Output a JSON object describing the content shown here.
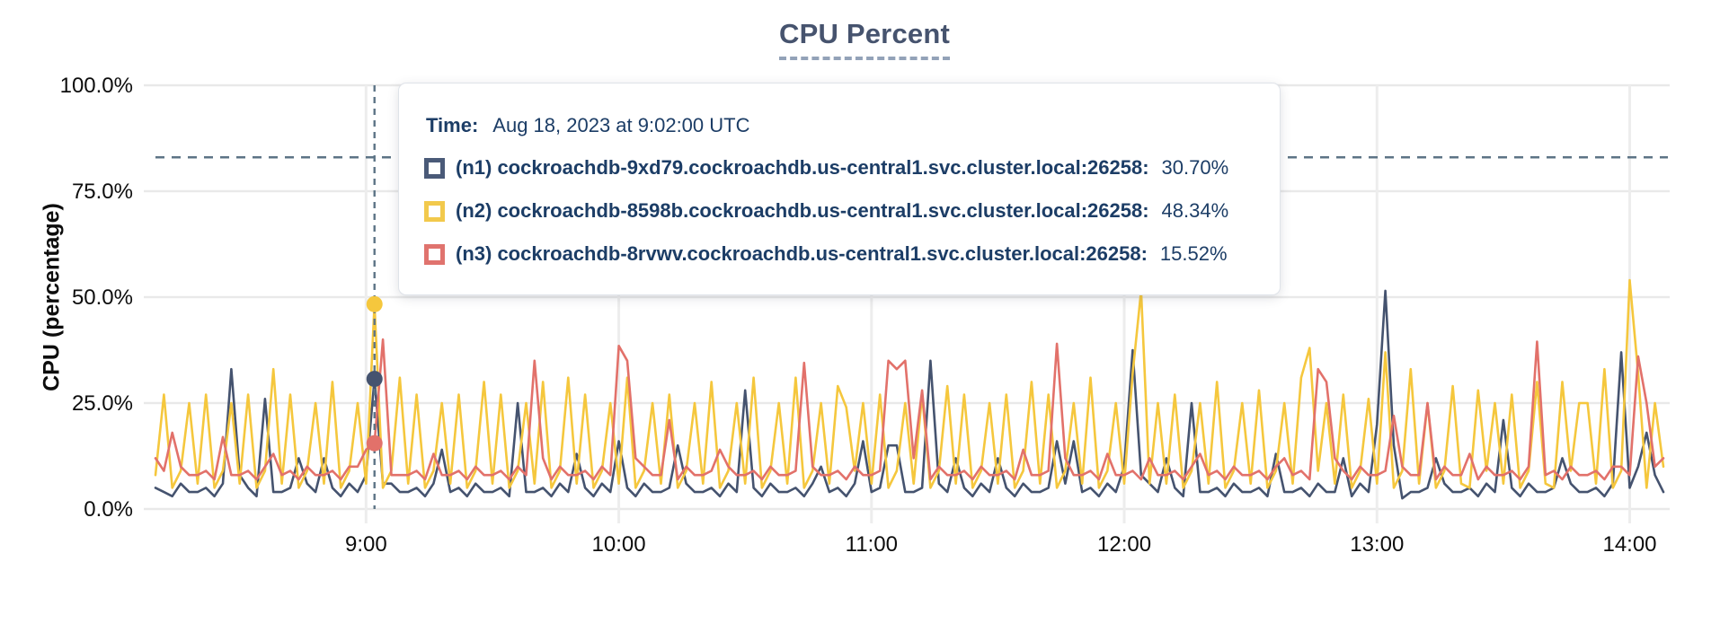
{
  "header": {
    "title": "CPU Percent"
  },
  "axes": {
    "y_label": "CPU (percentage)",
    "y_ticks": [
      {
        "label": "100.0%",
        "value": 100
      },
      {
        "label": "75.0%",
        "value": 75
      },
      {
        "label": "50.0%",
        "value": 50
      },
      {
        "label": "25.0%",
        "value": 25
      },
      {
        "label": "0.0%",
        "value": 0
      }
    ],
    "x_ticks": [
      {
        "label": "9:00",
        "hours": 9
      },
      {
        "label": "10:00",
        "hours": 10
      },
      {
        "label": "11:00",
        "hours": 11
      },
      {
        "label": "12:00",
        "hours": 12
      },
      {
        "label": "13:00",
        "hours": 13
      },
      {
        "label": "14:00",
        "hours": 14
      }
    ]
  },
  "tooltip": {
    "time_label": "Time:",
    "time_value": "Aug 18, 2023 at 9:02:00 UTC",
    "rows": [
      {
        "short": "n1",
        "label": "(n1) cockroachdb-9xd79.cockroachdb.us-central1.svc.cluster.local:26258:",
        "value": "30.70%",
        "color": "#4a5a78"
      },
      {
        "short": "n2",
        "label": "(n2) cockroachdb-8598b.cockroachdb.us-central1.svc.cluster.local:26258:",
        "value": "48.34%",
        "color": "#f2c94c"
      },
      {
        "short": "n3",
        "label": "(n3) cockroachdb-8rvwv.cockroachdb.us-central1.svc.cluster.local:26258:",
        "value": "15.52%",
        "color": "#e0736e"
      }
    ]
  },
  "chart_data": {
    "type": "line",
    "title": "CPU Percent",
    "ylabel": "CPU (percentage)",
    "ylim": [
      0,
      100
    ],
    "grid": true,
    "x_start_hours": 8.166667,
    "x_end_hours": 14.133333,
    "sample_interval_minutes": 2,
    "x_tick_hours": [
      9,
      10,
      11,
      12,
      13,
      14
    ],
    "threshold_line": {
      "value": 83,
      "style": "dashed",
      "color": "#5d7486"
    },
    "hover": {
      "index": 26,
      "time_hours": 9.033333,
      "time_text": "Aug 18, 2023 at 9:02:00 UTC"
    },
    "series": [
      {
        "name": "n1",
        "host": "cockroachdb-9xd79.cockroachdb.us-central1.svc.cluster.local:26258",
        "color": "#45536f",
        "hover_value": 30.7,
        "values": [
          5,
          4,
          3,
          6,
          4,
          4,
          5,
          3,
          6,
          33,
          8,
          5,
          3,
          26,
          4,
          4,
          5,
          12,
          6,
          4,
          12,
          5,
          3,
          6,
          4,
          8,
          30.7,
          6,
          6,
          4,
          4,
          5,
          3,
          6,
          14,
          4,
          5,
          3,
          6,
          4,
          4,
          5,
          3,
          25,
          4,
          4,
          5,
          3,
          6,
          4,
          13,
          5,
          3,
          6,
          4,
          16,
          5,
          3,
          6,
          4,
          4,
          5,
          15,
          6,
          4,
          4,
          5,
          3,
          6,
          4,
          28,
          5,
          3,
          6,
          4,
          4,
          5,
          3,
          6,
          10,
          4,
          5,
          3,
          6,
          16,
          4,
          5,
          15,
          15,
          4,
          4,
          5,
          35,
          6,
          4,
          12,
          5,
          3,
          6,
          4,
          12,
          5,
          3,
          6,
          4,
          4,
          5,
          16,
          6,
          16,
          4,
          5,
          3,
          6,
          4,
          10,
          37.5,
          8,
          6,
          4,
          12,
          5,
          3,
          25,
          4,
          4,
          5,
          3,
          6,
          4,
          4,
          5,
          3,
          13,
          4,
          4,
          5,
          3,
          6,
          4,
          4,
          12,
          3,
          6,
          4,
          20,
          51.5,
          15,
          2.5,
          4,
          4,
          5,
          12,
          6,
          4,
          4,
          5,
          3,
          6,
          4,
          21,
          5,
          3,
          6,
          4,
          4,
          5,
          12,
          6,
          4,
          4,
          5,
          3,
          6,
          37,
          5,
          10,
          18,
          8,
          4
        ]
      },
      {
        "name": "n2",
        "host": "cockroachdb-8598b.cockroachdb.us-central1.svc.cluster.local:26258",
        "color": "#f5c73d",
        "hover_value": 48.34,
        "values": [
          8,
          27,
          5,
          9,
          25,
          6,
          27,
          5,
          9,
          25,
          6,
          27,
          5,
          9,
          33,
          6,
          27,
          5,
          9,
          25,
          6,
          30,
          5,
          9,
          25,
          6,
          48.34,
          5,
          9,
          31,
          6,
          27,
          5,
          9,
          25,
          6,
          27,
          5,
          9,
          30,
          6,
          27,
          5,
          9,
          25,
          6,
          30,
          5,
          9,
          31,
          6,
          27,
          5,
          9,
          25,
          6,
          31,
          5,
          9,
          25,
          6,
          27,
          5,
          9,
          25,
          6,
          30,
          5,
          9,
          25,
          6,
          31,
          5,
          9,
          25,
          6,
          31,
          5,
          9,
          25,
          6,
          29,
          24,
          9,
          25,
          6,
          27,
          5,
          9,
          25,
          6,
          27,
          5,
          9,
          29,
          6,
          27,
          5,
          9,
          25,
          6,
          27,
          5,
          9,
          30,
          6,
          27,
          5,
          9,
          25,
          6,
          31,
          5,
          9,
          25,
          6,
          32,
          51.5,
          6,
          25,
          6,
          27,
          5,
          9,
          25,
          6,
          30,
          5,
          9,
          25,
          6,
          28,
          5,
          9,
          25,
          6,
          31,
          38,
          9,
          25,
          6,
          27,
          5,
          9,
          26,
          6,
          37,
          5,
          9,
          33,
          6,
          25,
          5,
          9,
          29,
          6,
          5,
          28,
          9,
          25,
          6,
          27,
          5,
          9,
          30,
          6,
          5,
          30,
          9,
          25,
          25,
          6,
          33,
          5,
          9,
          54,
          32,
          5,
          25,
          10
        ]
      },
      {
        "name": "n3",
        "host": "cockroachdb-8rvwv.cockroachdb.us-central1.svc.cluster.local:26258",
        "color": "#e2716a",
        "hover_value": 15.52,
        "values": [
          12,
          9,
          18,
          10,
          8,
          8,
          9,
          7,
          17,
          8,
          8,
          9,
          7,
          10,
          13,
          8,
          9,
          7,
          10,
          8,
          8,
          9,
          7,
          10,
          10,
          14,
          15.52,
          40,
          8,
          8,
          8,
          9,
          7,
          13,
          8,
          8,
          9,
          7,
          10,
          8,
          8,
          9,
          7,
          10,
          8,
          35,
          12,
          7,
          10,
          8,
          8,
          9,
          7,
          10,
          8,
          38.5,
          35,
          12,
          10,
          8,
          8,
          21,
          7,
          10,
          8,
          8,
          9,
          14,
          10,
          8,
          8,
          9,
          7,
          10,
          8,
          8,
          9,
          34.5,
          10,
          8,
          8,
          9,
          7,
          10,
          8,
          8,
          9,
          35,
          33,
          35,
          12,
          28,
          7,
          10,
          8,
          8,
          9,
          7,
          10,
          8,
          8,
          9,
          7,
          14,
          8,
          8,
          9,
          39,
          12,
          8,
          8,
          9,
          7,
          13,
          8,
          8,
          9,
          7,
          12,
          8,
          8,
          9,
          7,
          10,
          13,
          8,
          9,
          7,
          10,
          8,
          8,
          9,
          7,
          10,
          12,
          8,
          9,
          7,
          33,
          30,
          12,
          9,
          7,
          10,
          8,
          8,
          9,
          22,
          10,
          8,
          8,
          25,
          7,
          10,
          8,
          8,
          13,
          7,
          10,
          8,
          8,
          9,
          7,
          10,
          39.5,
          8,
          9,
          7,
          10,
          8,
          8,
          9,
          7,
          10,
          10,
          8,
          36,
          25,
          10,
          12
        ]
      }
    ]
  }
}
